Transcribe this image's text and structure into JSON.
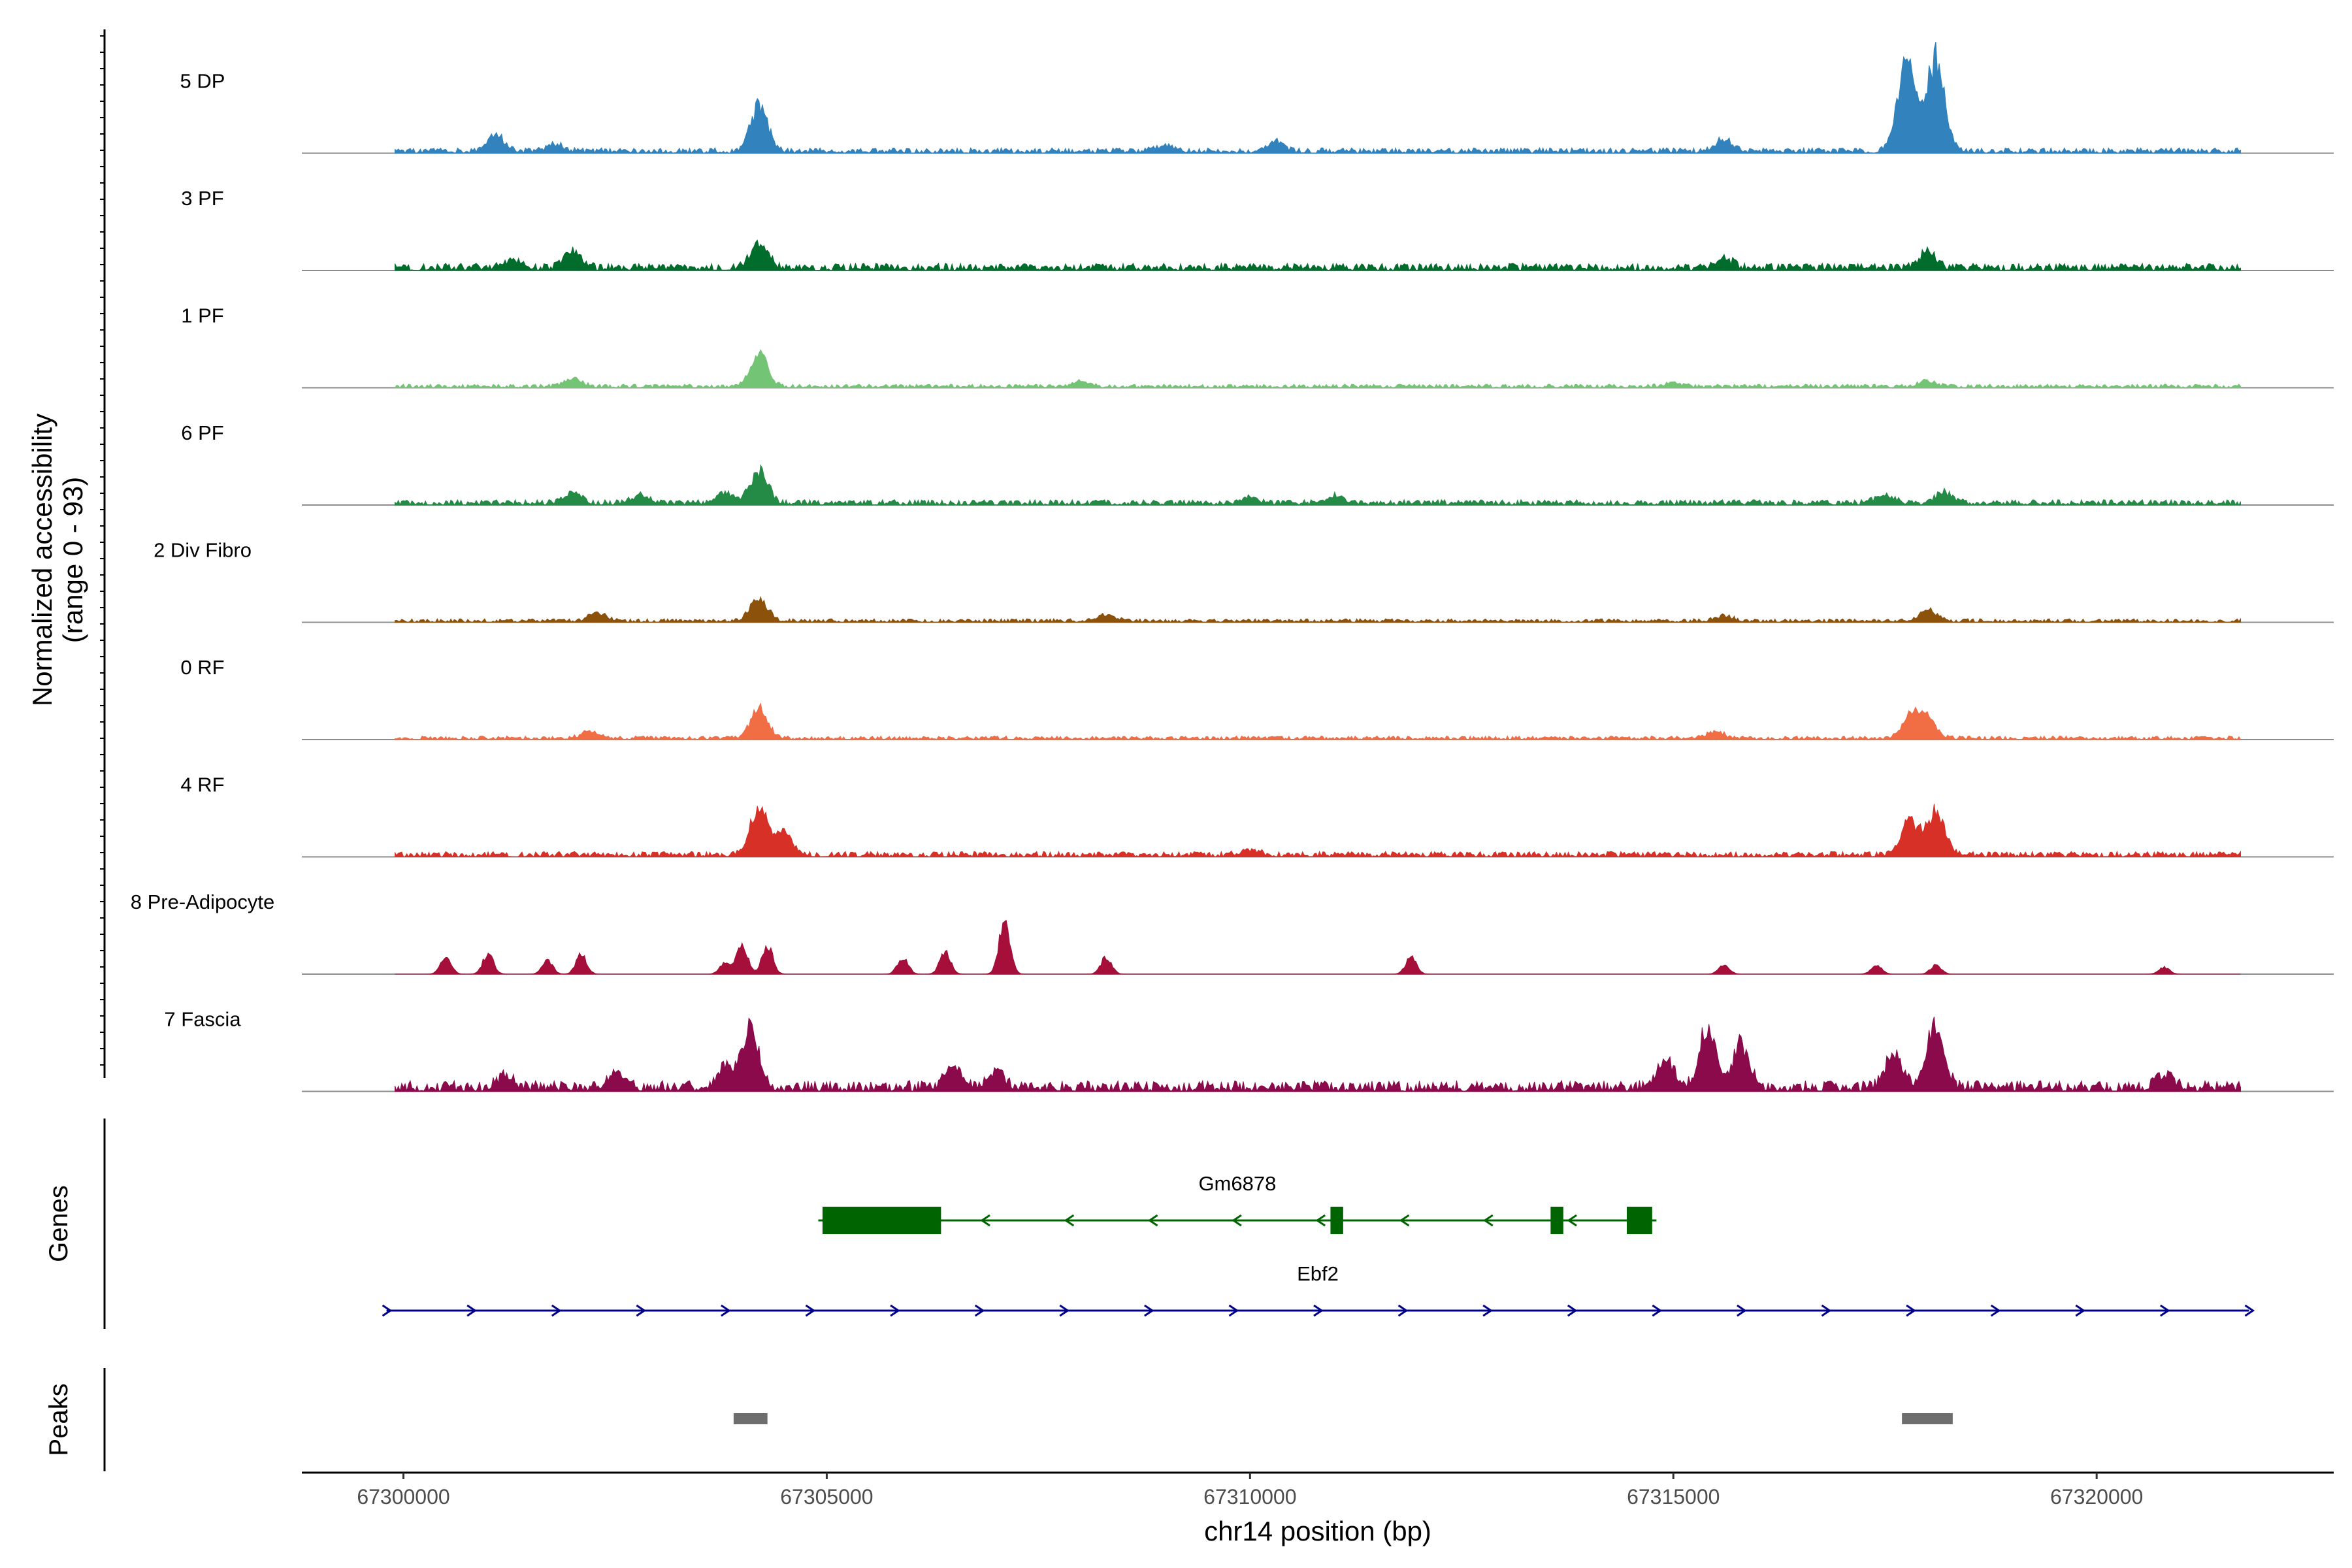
{
  "chart_data": {
    "type": "area",
    "title": "",
    "ylabel": "Normalized accessibility",
    "ylabel_sub": "(range 0 - 93)",
    "yrange": [
      0,
      93
    ],
    "xlabel": "chr14 position (bp)",
    "xlim": [
      67298800,
      67322800
    ],
    "xticks": [
      67300000,
      67305000,
      67310000,
      67315000,
      67320000
    ],
    "xtick_labels": [
      "67300000",
      "67305000",
      "67310000",
      "67315000",
      "67320000"
    ],
    "tracks": [
      {
        "name": "5 DP",
        "color": "#3182bd",
        "baseline": 3,
        "peaks": [
          [
            67301100,
            14
          ],
          [
            67301800,
            6
          ],
          [
            67304200,
            40
          ],
          [
            67309000,
            5
          ],
          [
            67310300,
            8
          ],
          [
            67315600,
            10
          ],
          [
            67317800,
            55
          ],
          [
            67318100,
            85
          ],
          [
            67317700,
            35
          ]
        ]
      },
      {
        "name": "3 PF",
        "color": "#006d2c",
        "baseline": 4,
        "peaks": [
          [
            67301300,
            8
          ],
          [
            67302000,
            14
          ],
          [
            67304200,
            22
          ],
          [
            67315600,
            8
          ],
          [
            67318000,
            14
          ]
        ]
      },
      {
        "name": "1 PF",
        "color": "#74c476",
        "baseline": 2,
        "peaks": [
          [
            67302000,
            7
          ],
          [
            67304200,
            30
          ],
          [
            67308000,
            4
          ],
          [
            67315000,
            3
          ],
          [
            67318000,
            5
          ]
        ]
      },
      {
        "name": "6 PF",
        "color": "#238b45",
        "baseline": 3,
        "peaks": [
          [
            67302000,
            9
          ],
          [
            67302800,
            7
          ],
          [
            67303800,
            10
          ],
          [
            67304200,
            30
          ],
          [
            67310000,
            5
          ],
          [
            67311000,
            6
          ],
          [
            67317500,
            8
          ],
          [
            67318200,
            10
          ]
        ]
      },
      {
        "name": "2 Div Fibro",
        "color": "#8c510a",
        "baseline": 2,
        "peaks": [
          [
            67302300,
            7
          ],
          [
            67304200,
            20
          ],
          [
            67308300,
            6
          ],
          [
            67315600,
            5
          ],
          [
            67318000,
            10
          ]
        ]
      },
      {
        "name": "0 RF",
        "color": "#f16d44",
        "baseline": 2,
        "peaks": [
          [
            67302200,
            6
          ],
          [
            67304200,
            28
          ],
          [
            67315500,
            6
          ],
          [
            67317800,
            20
          ],
          [
            67318000,
            18
          ]
        ]
      },
      {
        "name": "4 RF",
        "color": "#d73027",
        "baseline": 3,
        "peaks": [
          [
            67304200,
            45
          ],
          [
            67304500,
            20
          ],
          [
            67310000,
            5
          ],
          [
            67317800,
            30
          ],
          [
            67318100,
            40
          ]
        ]
      },
      {
        "name": "8 Pre-Adipocyte",
        "color": "#a50f3a",
        "baseline": 0,
        "peaks": [
          [
            67300500,
            15
          ],
          [
            67301000,
            18
          ],
          [
            67301700,
            12
          ],
          [
            67302100,
            18
          ],
          [
            67303800,
            10
          ],
          [
            67304000,
            28
          ],
          [
            67304300,
            25
          ],
          [
            67305900,
            15
          ],
          [
            67306400,
            20
          ],
          [
            67307100,
            50
          ],
          [
            67308300,
            15
          ],
          [
            67311900,
            15
          ],
          [
            67315600,
            8
          ],
          [
            67317400,
            8
          ],
          [
            67318100,
            8
          ],
          [
            67320800,
            6
          ]
        ]
      },
      {
        "name": "7 Fascia",
        "color": "#8a0a4c",
        "baseline": 6,
        "peaks": [
          [
            67301200,
            10
          ],
          [
            67302500,
            12
          ],
          [
            67303800,
            18
          ],
          [
            67304100,
            52
          ],
          [
            67306500,
            20
          ],
          [
            67307000,
            14
          ],
          [
            67314900,
            25
          ],
          [
            67315400,
            50
          ],
          [
            67315800,
            40
          ],
          [
            67317600,
            30
          ],
          [
            67318100,
            55
          ],
          [
            67320800,
            10
          ]
        ]
      }
    ],
    "genes_panel_title": "Genes",
    "genes": [
      {
        "name": "Gm6878",
        "strand": "-",
        "color": "#006400",
        "start": 67304900,
        "end": 67314800,
        "exons": [
          [
            67304950,
            67306350
          ],
          [
            67310950,
            67311100
          ],
          [
            67313550,
            67313700
          ],
          [
            67314450,
            67314750
          ]
        ]
      },
      {
        "name": "Ebf2",
        "strand": "+",
        "color": "#00008b",
        "start": 67299800,
        "end": 67321800,
        "exons": []
      }
    ],
    "peaks_panel_title": "Peaks",
    "peak_regions": [
      [
        67303900,
        67304300
      ],
      [
        67317700,
        67318300
      ]
    ]
  }
}
